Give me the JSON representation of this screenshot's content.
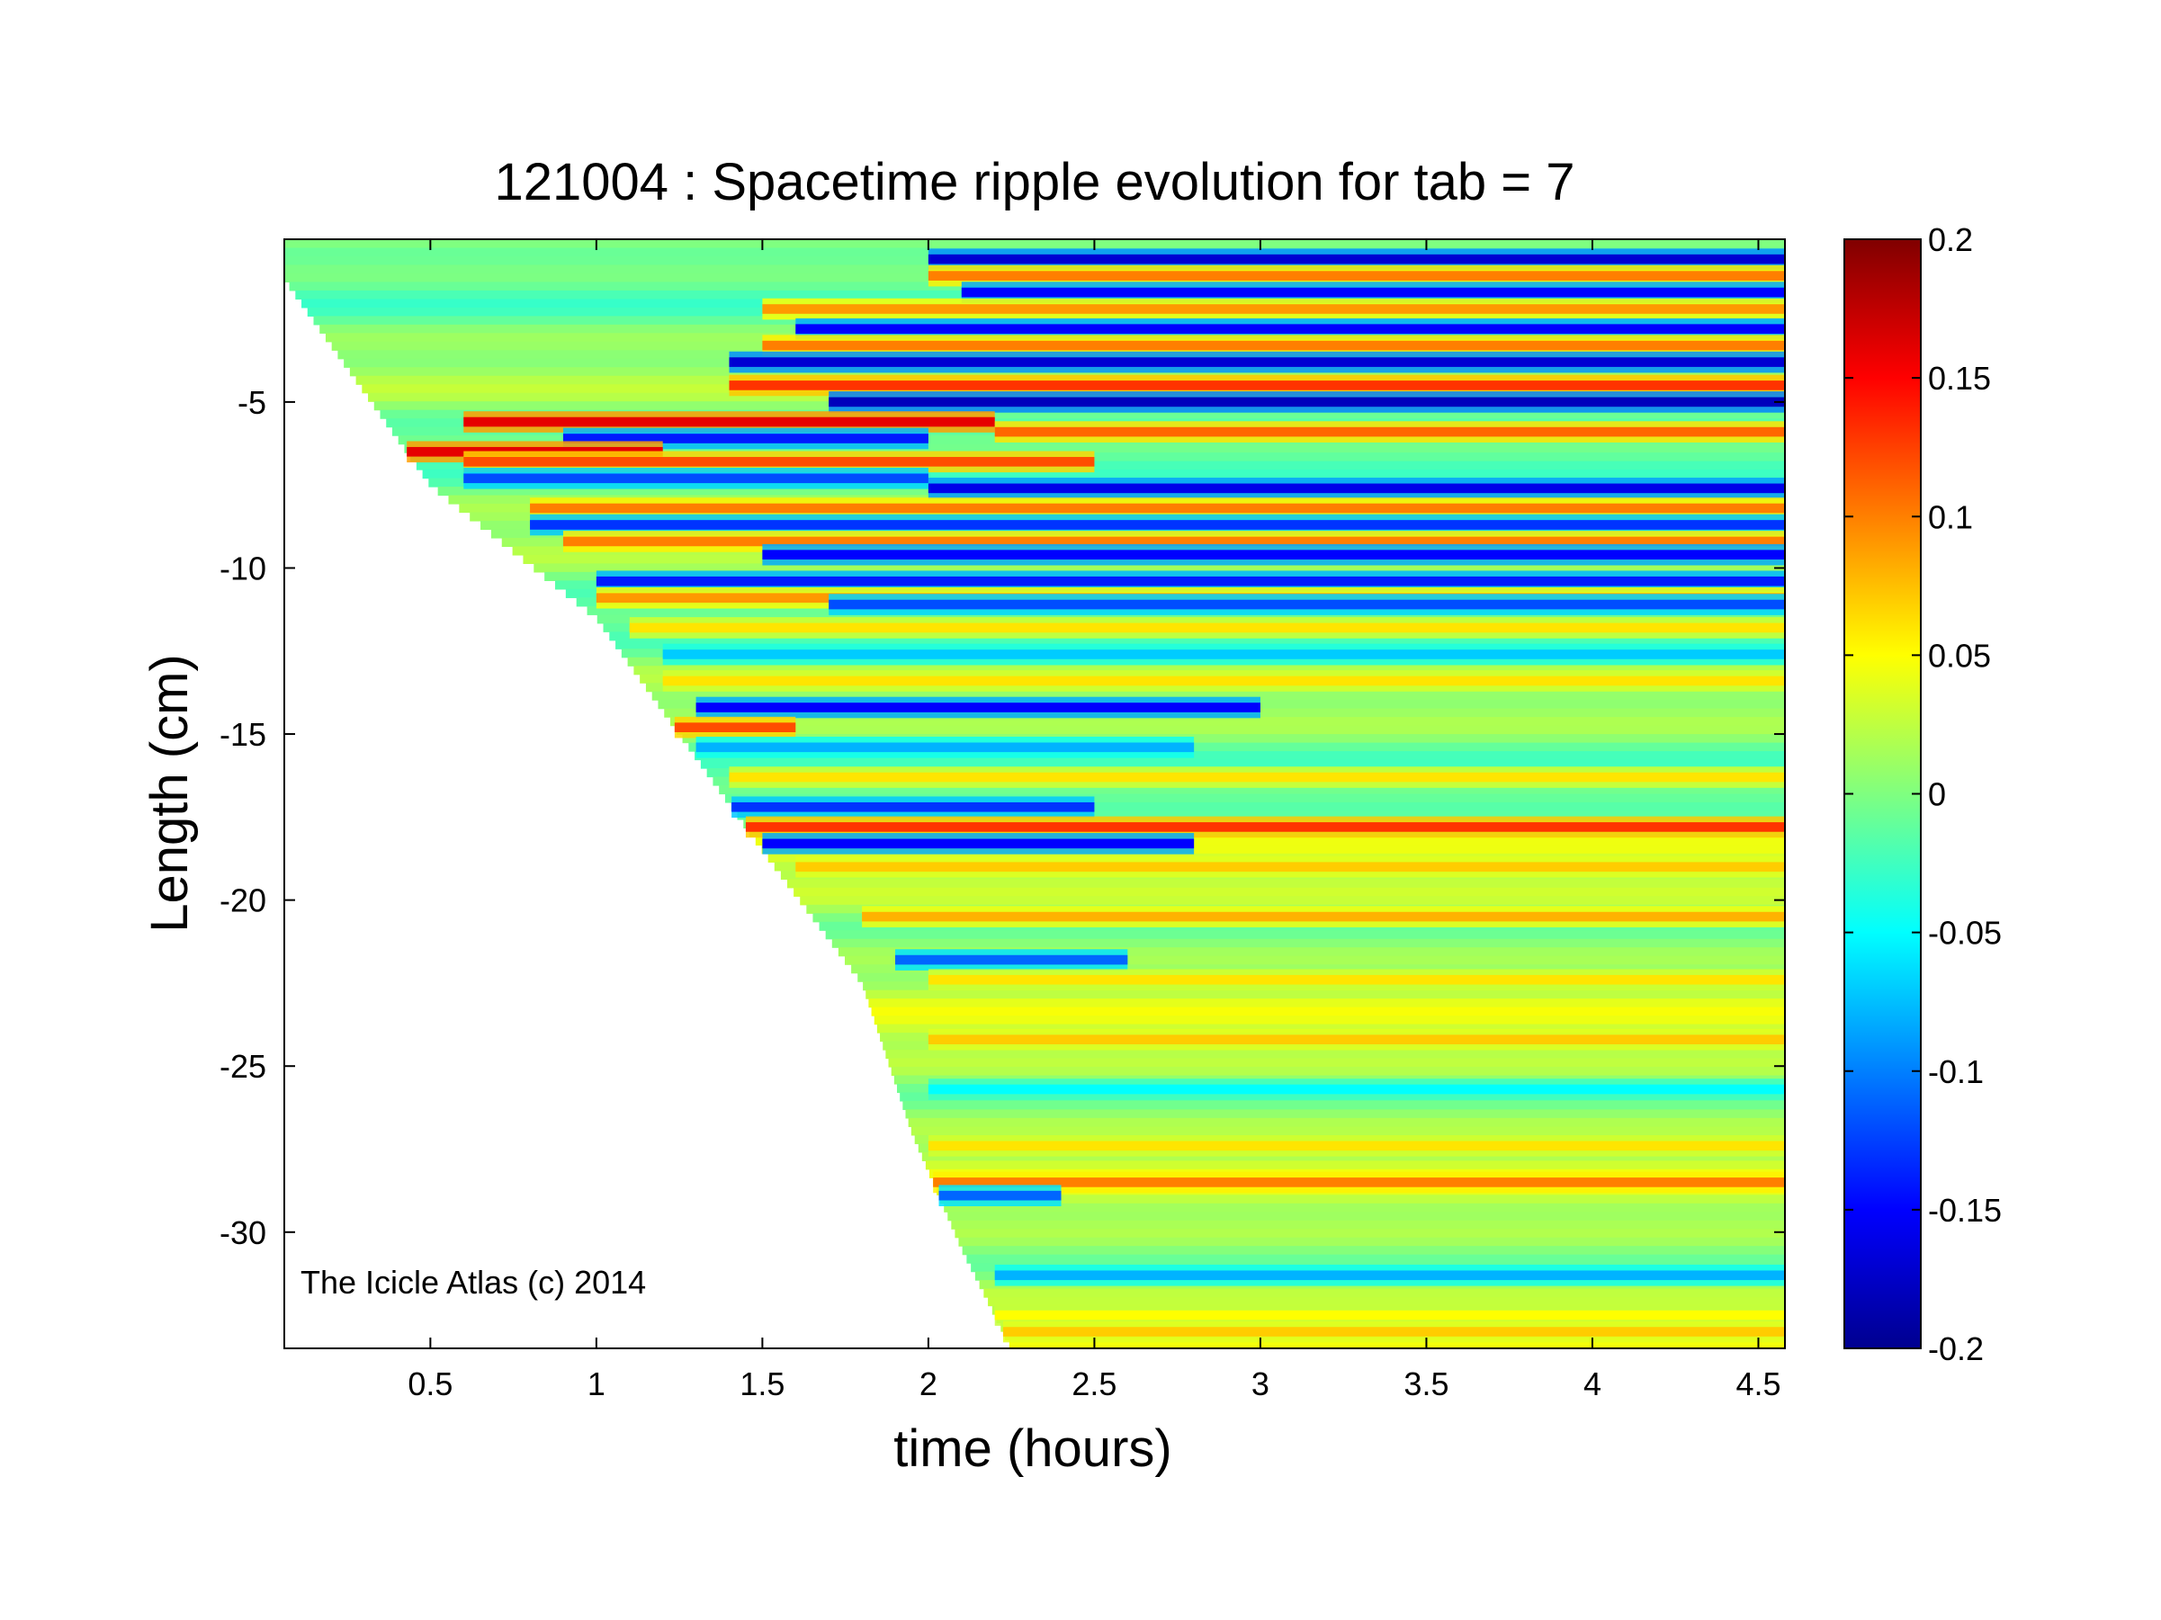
{
  "chart_data": {
    "type": "heatmap",
    "title": "121004 : Spacetime ripple evolution for tab = 7",
    "xlabel": "time (hours)",
    "ylabel": "Length (cm)",
    "xlim": [
      0.06,
      4.58
    ],
    "ylim": [
      -33.5,
      -0.1
    ],
    "xticks": [
      0.5,
      1,
      1.5,
      2,
      2.5,
      3,
      3.5,
      4,
      4.5
    ],
    "xtick_labels": [
      "0.5",
      "1",
      "1.5",
      "2",
      "2.5",
      "3",
      "3.5",
      "4",
      "4.5"
    ],
    "yticks": [
      -5,
      -10,
      -15,
      -20,
      -25,
      -30
    ],
    "ytick_labels": [
      "-5",
      "-10",
      "-15",
      "-20",
      "-25",
      "-30"
    ],
    "colorbar": {
      "clim": [
        -0.2,
        0.2
      ],
      "ticks": [
        0.2,
        0.15,
        0.1,
        0.05,
        0,
        -0.05,
        -0.1,
        -0.15,
        -0.2
      ],
      "tick_labels": [
        "0.2",
        "0.15",
        "0.1",
        "0.05",
        "0",
        "-0.05",
        "-0.1",
        "-0.15",
        "-0.2"
      ],
      "colormap": "jet"
    },
    "annotation": "The Icicle Atlas (c) 2014",
    "grid": false,
    "growth_front": [
      [
        0.06,
        -1.3
      ],
      [
        0.5,
        -7.5
      ],
      [
        1.0,
        -11.5
      ],
      [
        1.5,
        -18.5
      ],
      [
        1.8,
        -22.5
      ],
      [
        1.95,
        -27
      ],
      [
        2.1,
        -30.5
      ],
      [
        2.25,
        -33.5
      ]
    ],
    "ripple_bands": [
      {
        "y": -0.7,
        "t_start": 2.0,
        "t_end": 4.58,
        "amplitude": -0.17
      },
      {
        "y": -1.2,
        "t_start": 2.0,
        "t_end": 4.58,
        "amplitude": 0.1
      },
      {
        "y": -1.7,
        "t_start": 2.1,
        "t_end": 4.58,
        "amplitude": -0.15
      },
      {
        "y": -2.2,
        "t_start": 1.5,
        "t_end": 4.58,
        "amplitude": 0.09
      },
      {
        "y": -2.8,
        "t_start": 1.6,
        "t_end": 4.58,
        "amplitude": -0.15
      },
      {
        "y": -3.3,
        "t_start": 1.5,
        "t_end": 4.58,
        "amplitude": 0.1
      },
      {
        "y": -3.8,
        "t_start": 1.4,
        "t_end": 4.58,
        "amplitude": -0.17
      },
      {
        "y": -4.5,
        "t_start": 1.4,
        "t_end": 4.58,
        "amplitude": 0.13
      },
      {
        "y": -5.0,
        "t_start": 1.7,
        "t_end": 4.58,
        "amplitude": -0.18
      },
      {
        "y": -5.6,
        "t_start": 0.6,
        "t_end": 2.2,
        "amplitude": 0.16
      },
      {
        "y": -5.9,
        "t_start": 2.2,
        "t_end": 4.58,
        "amplitude": 0.11
      },
      {
        "y": -6.1,
        "t_start": 0.9,
        "t_end": 2.0,
        "amplitude": -0.14
      },
      {
        "y": -6.5,
        "t_start": 0.36,
        "t_end": 1.2,
        "amplitude": 0.16
      },
      {
        "y": -6.8,
        "t_start": 0.6,
        "t_end": 2.5,
        "amplitude": 0.12
      },
      {
        "y": -7.3,
        "t_start": 0.6,
        "t_end": 2.0,
        "amplitude": -0.12
      },
      {
        "y": -7.6,
        "t_start": 2.0,
        "t_end": 4.58,
        "amplitude": -0.16
      },
      {
        "y": -8.2,
        "t_start": 0.8,
        "t_end": 4.58,
        "amplitude": 0.1
      },
      {
        "y": -8.7,
        "t_start": 0.8,
        "t_end": 4.58,
        "amplitude": -0.13
      },
      {
        "y": -9.2,
        "t_start": 0.9,
        "t_end": 4.58,
        "amplitude": 0.1
      },
      {
        "y": -9.6,
        "t_start": 1.5,
        "t_end": 4.58,
        "amplitude": -0.15
      },
      {
        "y": -10.4,
        "t_start": 1.0,
        "t_end": 4.58,
        "amplitude": -0.14
      },
      {
        "y": -10.9,
        "t_start": 1.0,
        "t_end": 4.58,
        "amplitude": 0.09
      },
      {
        "y": -11.1,
        "t_start": 1.7,
        "t_end": 4.58,
        "amplitude": -0.12
      },
      {
        "y": -11.8,
        "t_start": 1.1,
        "t_end": 4.58,
        "amplitude": 0.06
      },
      {
        "y": -12.6,
        "t_start": 1.2,
        "t_end": 4.58,
        "amplitude": -0.07
      },
      {
        "y": -13.4,
        "t_start": 1.2,
        "t_end": 4.58,
        "amplitude": 0.06
      },
      {
        "y": -14.2,
        "t_start": 1.3,
        "t_end": 3.0,
        "amplitude": -0.15
      },
      {
        "y": -14.8,
        "t_start": 1.2,
        "t_end": 1.6,
        "amplitude": 0.12
      },
      {
        "y": -15.4,
        "t_start": 1.3,
        "t_end": 2.8,
        "amplitude": -0.08
      },
      {
        "y": -16.3,
        "t_start": 1.4,
        "t_end": 4.58,
        "amplitude": 0.06
      },
      {
        "y": -17.2,
        "t_start": 1.4,
        "t_end": 2.5,
        "amplitude": -0.13
      },
      {
        "y": -17.8,
        "t_start": 1.35,
        "t_end": 4.58,
        "amplitude": 0.13
      },
      {
        "y": -18.3,
        "t_start": 1.5,
        "t_end": 2.8,
        "amplitude": -0.15
      },
      {
        "y": -19.0,
        "t_start": 1.6,
        "t_end": 4.58,
        "amplitude": 0.07
      },
      {
        "y": -20.5,
        "t_start": 1.8,
        "t_end": 4.58,
        "amplitude": 0.08
      },
      {
        "y": -21.8,
        "t_start": 1.9,
        "t_end": 2.6,
        "amplitude": -0.11
      },
      {
        "y": -22.4,
        "t_start": 2.0,
        "t_end": 4.58,
        "amplitude": 0.06
      },
      {
        "y": -24.2,
        "t_start": 2.0,
        "t_end": 4.58,
        "amplitude": 0.07
      },
      {
        "y": -25.7,
        "t_start": 2.0,
        "t_end": 4.58,
        "amplitude": -0.05
      },
      {
        "y": -27.4,
        "t_start": 2.0,
        "t_end": 4.58,
        "amplitude": 0.06
      },
      {
        "y": -28.5,
        "t_start": 2.0,
        "t_end": 4.58,
        "amplitude": 0.1
      },
      {
        "y": -28.9,
        "t_start": 2.0,
        "t_end": 2.4,
        "amplitude": -0.11
      },
      {
        "y": -31.3,
        "t_start": 2.2,
        "t_end": 4.58,
        "amplitude": -0.08
      },
      {
        "y": -32.5,
        "t_start": 2.2,
        "t_end": 4.58,
        "amplitude": 0.05
      },
      {
        "y": -33.0,
        "t_start": 2.2,
        "t_end": 4.58,
        "amplitude": 0.07
      }
    ]
  }
}
